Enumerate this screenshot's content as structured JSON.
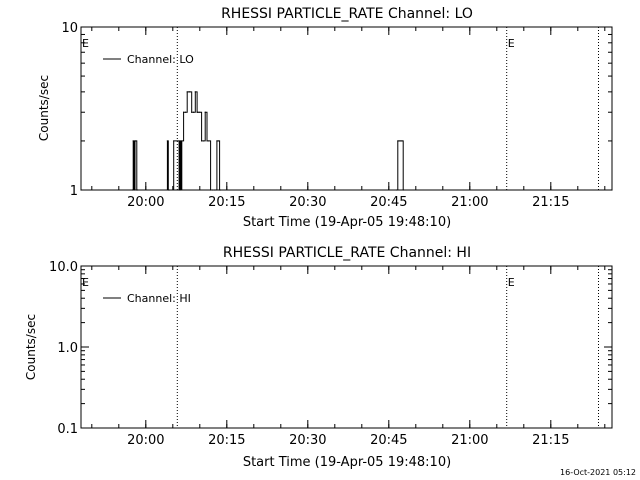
{
  "colors": {
    "background": "#ffffff",
    "foreground": "#000000"
  },
  "footer_timestamp": "16-Oct-2021 05:12",
  "chart_data": [
    {
      "type": "line",
      "title": "RHESSI PARTICLE_RATE Channel: LO",
      "xlabel": "Start Time (19-Apr-05 19:48:10)",
      "ylabel": "Counts/sec",
      "x_tick_labels": [
        "20:00",
        "20:15",
        "20:30",
        "20:45",
        "21:00",
        "21:15"
      ],
      "x_tick_minutes": [
        720,
        1620,
        2520,
        3420,
        4320,
        5220
      ],
      "y_scale": "log",
      "ylim": [
        1,
        10
      ],
      "y_tick_labels": [
        "1",
        "10"
      ],
      "legend": {
        "entries": [
          "Channel: LO"
        ],
        "placement": "top-left"
      },
      "markers": [
        {
          "label": "E",
          "time": "19:48:10"
        },
        {
          "label": "",
          "time": "20:06"
        },
        {
          "label": "E",
          "time": "21:07"
        },
        {
          "label": "",
          "time": "21:24"
        }
      ],
      "series": [
        {
          "name": "Channel: LO",
          "x": [
            "19:48:10",
            "19:57:40",
            "19:57:50",
            "19:58:00",
            "19:58:10",
            "19:58:20",
            "19:58:30",
            "19:58:40",
            "20:04:10",
            "20:04:20",
            "20:04:30",
            "20:05:20",
            "20:06:20",
            "20:06:30",
            "20:06:40",
            "20:06:50",
            "20:07:10",
            "20:07:30",
            "20:07:50",
            "20:08:10",
            "20:08:20",
            "20:08:40",
            "20:09:00",
            "20:09:20",
            "20:09:40",
            "20:09:50",
            "20:10:10",
            "20:10:30",
            "20:10:50",
            "20:11:10",
            "20:11:30",
            "20:11:50",
            "20:12:10",
            "20:12:30",
            "20:12:50",
            "20:13:10",
            "20:13:20",
            "20:13:30",
            "20:13:40",
            "20:13:50",
            "20:14:00",
            "20:46:40",
            "20:46:50",
            "20:47:00",
            "20:47:10",
            "20:47:20",
            "20:47:30",
            "20:47:40",
            "20:47:50",
            "21:26:30"
          ],
          "y": [
            1,
            1,
            2,
            1,
            2,
            2,
            1,
            1,
            2,
            1,
            1,
            2,
            1,
            2,
            1,
            2,
            3,
            3,
            4,
            4,
            4,
            3,
            3,
            4,
            3,
            3,
            3,
            2,
            2,
            3,
            2,
            2,
            1,
            1,
            1,
            1,
            2,
            2,
            2,
            1,
            1,
            1,
            2,
            2,
            2,
            2,
            2,
            2,
            1,
            1
          ]
        }
      ]
    },
    {
      "type": "line",
      "title": "RHESSI PARTICLE_RATE Channel: HI",
      "xlabel": "Start Time (19-Apr-05 19:48:10)",
      "ylabel": "Counts/sec",
      "x_tick_labels": [
        "20:00",
        "20:15",
        "20:30",
        "20:45",
        "21:00",
        "21:15"
      ],
      "x_tick_minutes": [
        720,
        1620,
        2520,
        3420,
        4320,
        5220
      ],
      "y_scale": "log",
      "ylim": [
        0.1,
        10
      ],
      "y_tick_labels": [
        "0.1",
        "1.0",
        "10.0"
      ],
      "legend": {
        "entries": [
          "Channel: HI"
        ],
        "placement": "top-left"
      },
      "markers": [
        {
          "label": "E",
          "time": "19:48:10"
        },
        {
          "label": "",
          "time": "20:06"
        },
        {
          "label": "E",
          "time": "21:07"
        },
        {
          "label": "",
          "time": "21:24"
        }
      ],
      "series": [
        {
          "name": "Channel: HI",
          "x": [],
          "y": []
        }
      ]
    }
  ]
}
